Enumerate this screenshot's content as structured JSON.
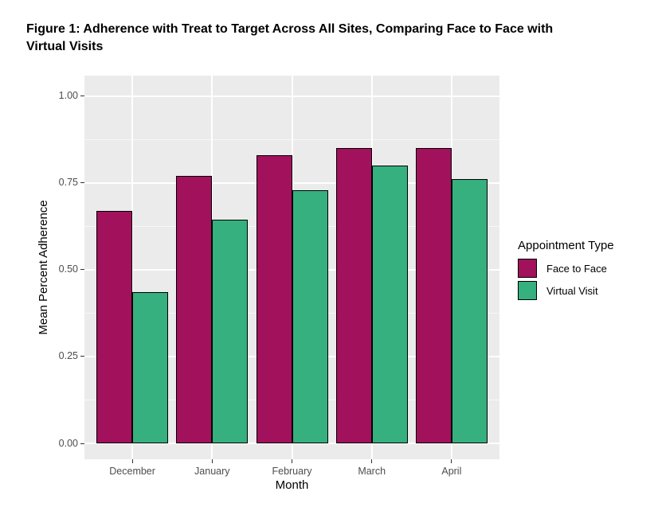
{
  "figure_title_line1": "Figure 1: Adherence with Treat to Target Across All Sites, Comparing Face to Face with",
  "figure_title_line2": "Virtual Visits",
  "chart_data": {
    "type": "bar",
    "title": "Figure 1: Adherence with Treat to Target Across All Sites, Comparing Face to Face with Virtual Visits",
    "categories": [
      "December",
      "January",
      "February",
      "March",
      "April"
    ],
    "series": [
      {
        "name": "Face to Face",
        "color": "#A2115C",
        "values": [
          0.67,
          0.77,
          0.83,
          0.85,
          0.85
        ]
      },
      {
        "name": "Virtual Visit",
        "color": "#35B07E",
        "values": [
          0.435,
          0.645,
          0.73,
          0.8,
          0.76
        ]
      }
    ],
    "xlabel": "Month",
    "ylabel": "Mean Percent Adherence",
    "ylim": [
      0,
      1
    ],
    "ytick_labels": [
      "0.00",
      "0.25",
      "0.50",
      "0.75",
      "1.00"
    ],
    "ytick_values": [
      0,
      0.25,
      0.5,
      0.75,
      1
    ],
    "legend_title": "Appointment Type",
    "legend_position": "right",
    "grid": "major-and-minor, white on grey panel",
    "panel_bg": "#EBEBEB",
    "grid_color": "#FFFFFF",
    "bar_border_color": "#000000",
    "axis_text_color": "#4D4D4D",
    "bar_layout": "dodged pairs per month"
  }
}
